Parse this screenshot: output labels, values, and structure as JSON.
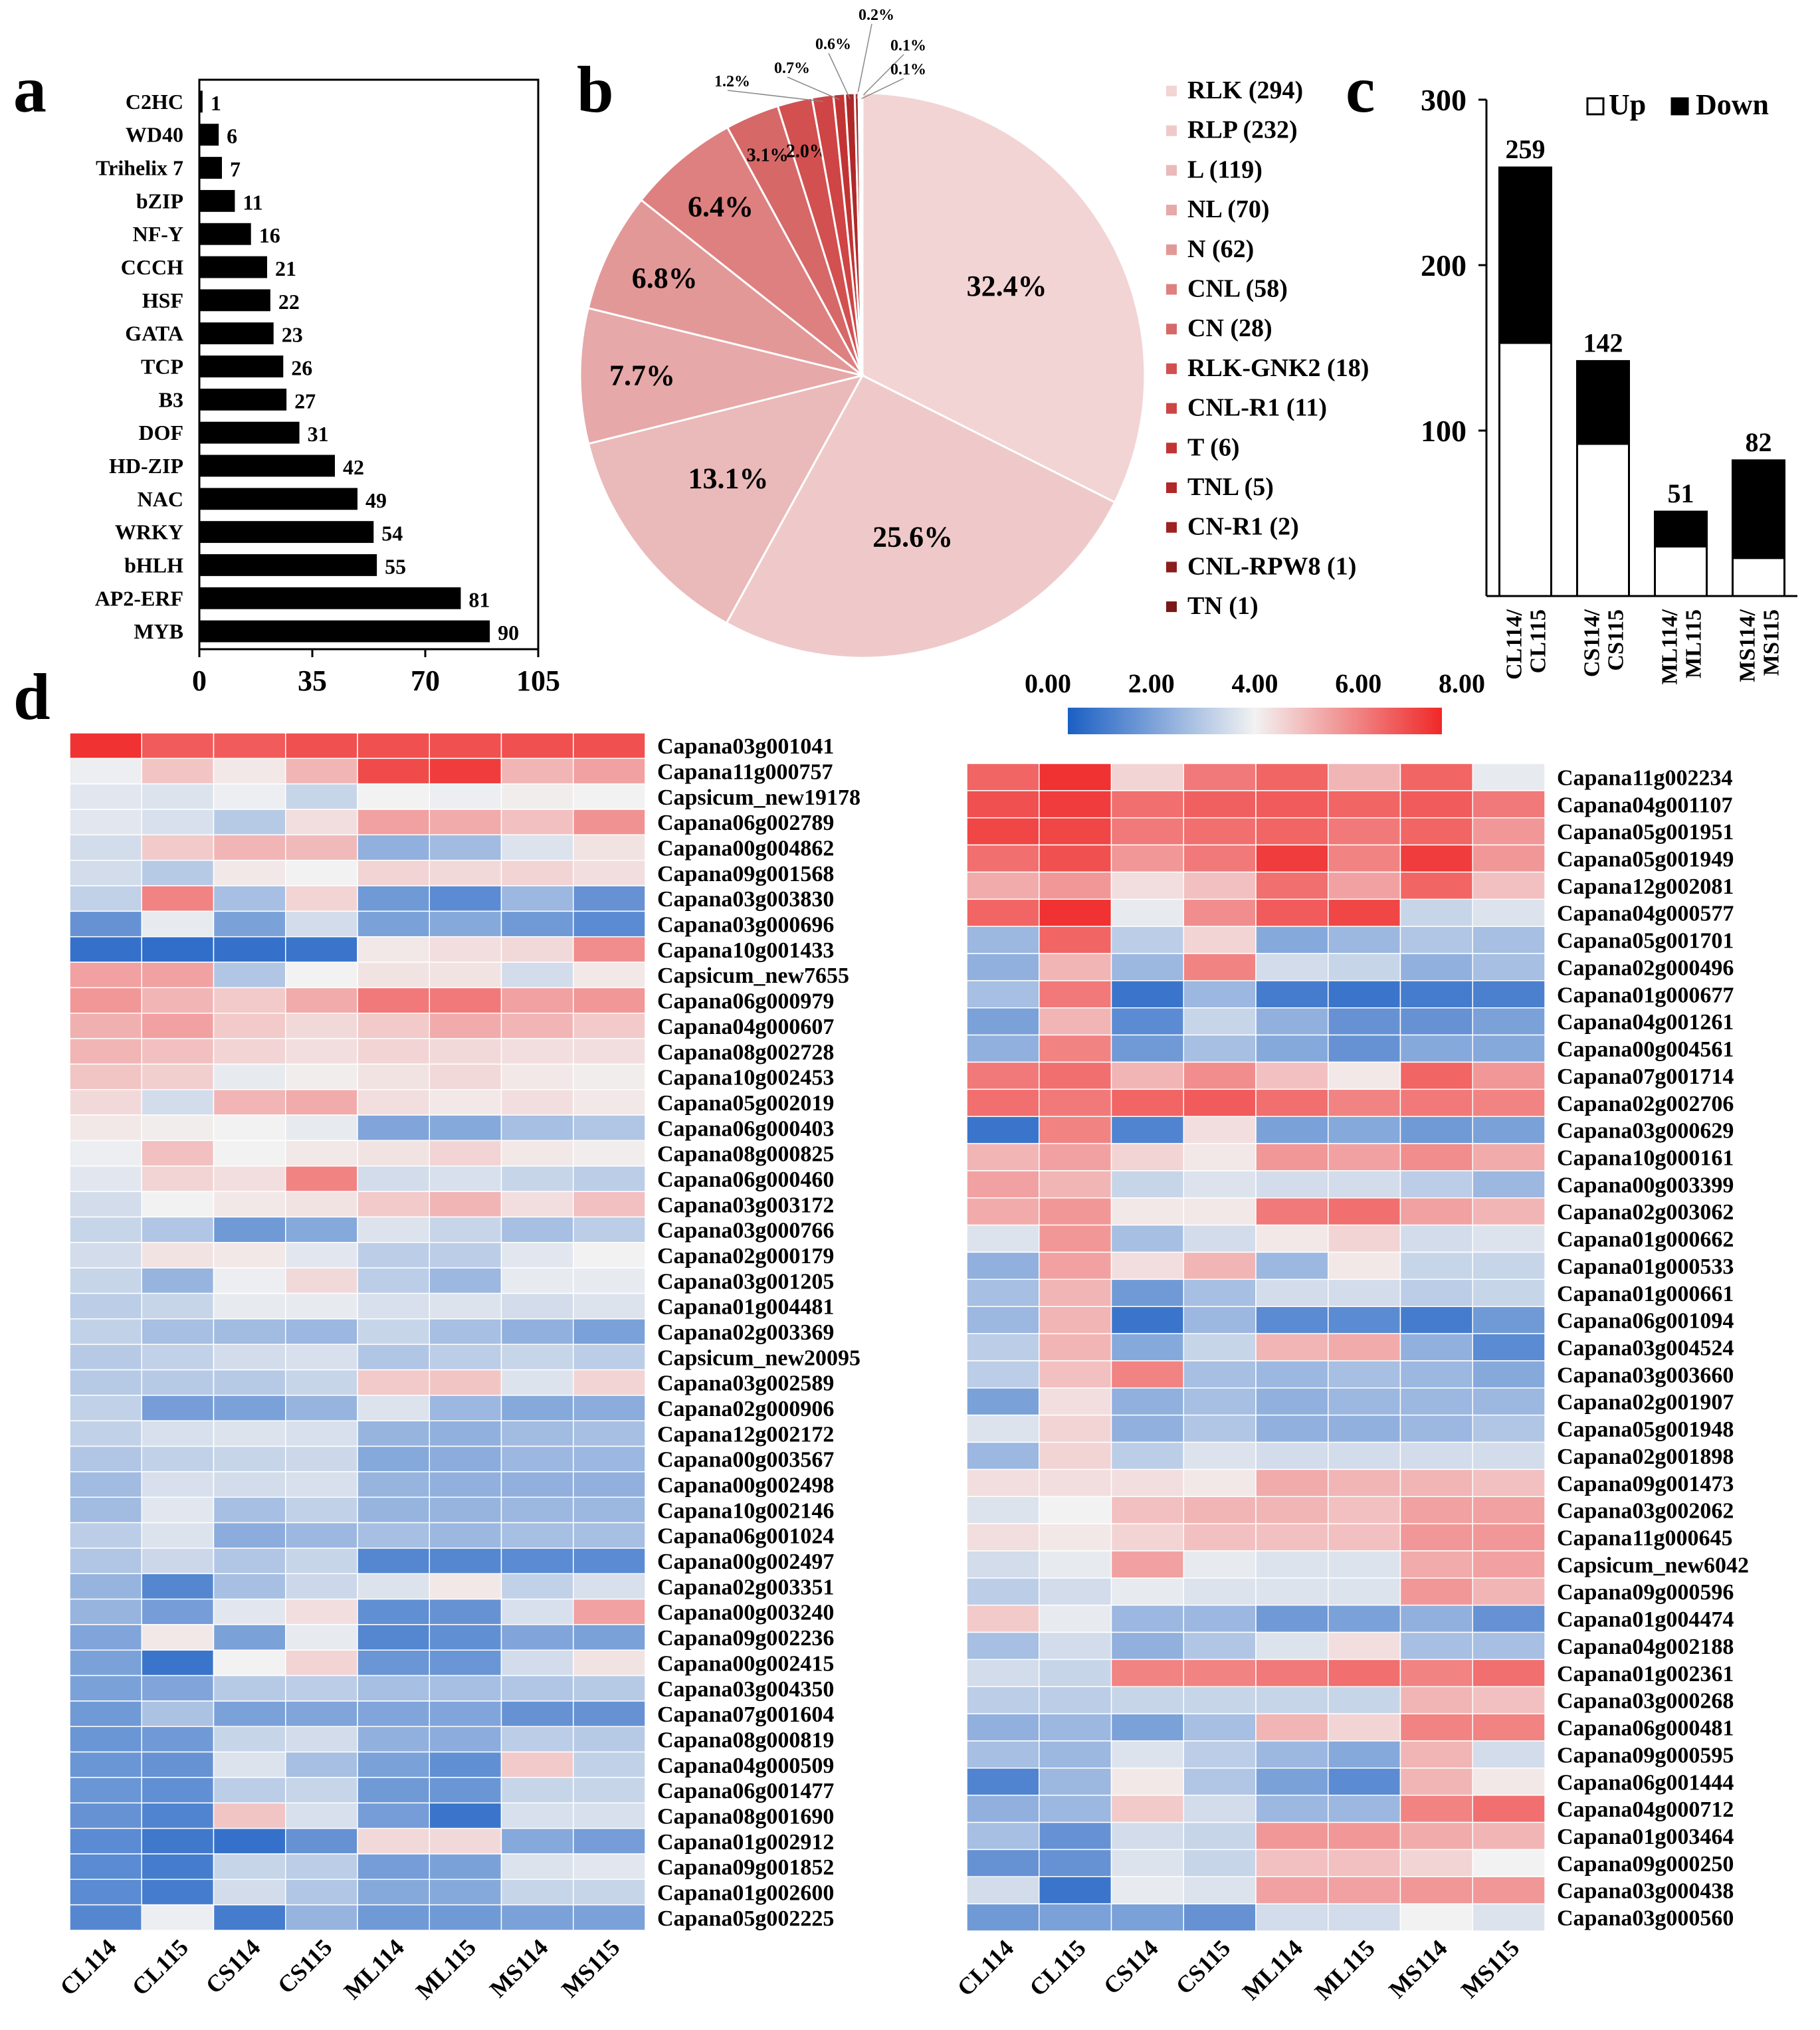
{
  "colors": {
    "bar": "#000000",
    "heat_low": "#1a5fc4",
    "heat_mid": "#f2f2f2",
    "heat_high": "#f02828",
    "pie": [
      "#f2d4d4",
      "#efc9c9",
      "#eab9b9",
      "#e6a8a8",
      "#e39898",
      "#de8080",
      "#d66868",
      "#d25050",
      "#cf4444",
      "#c23434",
      "#b02828",
      "#9e2222",
      "#8c1d1d",
      "#7a1818"
    ]
  },
  "panel_labels": {
    "a": "a",
    "b": "b",
    "c": "c",
    "d": "d"
  },
  "chart_data": [
    {
      "id": "a",
      "type": "bar",
      "orientation": "horizontal",
      "categories": [
        "C2HC",
        "WD40",
        "Trihelix 7",
        "bZIP",
        "NF-Y",
        "CCCH",
        "HSF",
        "GATA",
        "TCP",
        "B3",
        "DOF",
        "HD-ZIP",
        "NAC",
        "WRKY",
        "bHLH",
        "AP2-ERF",
        "MYB"
      ],
      "values": [
        1,
        6,
        7,
        11,
        16,
        21,
        22,
        23,
        26,
        27,
        31,
        42,
        49,
        54,
        55,
        81,
        90
      ],
      "xlim": [
        0,
        105
      ],
      "xticks": [
        "0",
        "35",
        "70",
        "105"
      ],
      "xtick_values": [
        0,
        35,
        70,
        105
      ]
    },
    {
      "id": "b",
      "type": "pie",
      "labels": [
        "RLK",
        "RLP",
        "L",
        "NL",
        "N",
        "CNL",
        "CN",
        "RLK-GNK2",
        "CNL-R1",
        "T",
        "TNL",
        "CN-R1",
        "CNL-RPW8",
        "TN"
      ],
      "counts": [
        294,
        232,
        119,
        70,
        62,
        58,
        28,
        18,
        11,
        6,
        5,
        2,
        1,
        1
      ],
      "legend": [
        "RLK (294)",
        "RLP (232)",
        "L (119)",
        "NL (70)",
        "N (62)",
        "CNL (58)",
        "CN (28)",
        "RLK-GNK2 (18)",
        "CNL-R1 (11)",
        "T (6)",
        "TNL (5)",
        "CN-R1 (2)",
        "CNL-RPW8 (1)",
        "TN (1)"
      ],
      "percent_labels": [
        "32.4%",
        "25.6%",
        "13.1%",
        "7.7%",
        "6.8%",
        "6.4%",
        "3.1%",
        "2.0%",
        "1.2%",
        "0.7%",
        "0.6%",
        "0.2%",
        "0.1%",
        "0.1%"
      ],
      "legend_position": "right"
    },
    {
      "id": "c",
      "type": "bar",
      "stacked": true,
      "categories": [
        "CL114/\nCL115",
        "CS114/\nCS115",
        "ML114/\nML115",
        "MS114/\nMS115"
      ],
      "series": [
        {
          "name": "Up",
          "values": [
            153,
            92,
            30,
            23
          ]
        },
        {
          "name": "Down",
          "values": [
            106,
            50,
            21,
            59
          ]
        }
      ],
      "totals": [
        "259",
        "142",
        "51",
        "82"
      ],
      "total_values": [
        259,
        142,
        51,
        82
      ],
      "ylim": [
        0,
        300
      ],
      "yticks": [
        "100",
        "200",
        "300"
      ],
      "ytick_values": [
        100,
        200,
        300
      ],
      "legend": [
        "Up",
        "Down"
      ],
      "legend_position": "top-right"
    },
    {
      "id": "d",
      "type": "heatmap",
      "colorbar": {
        "ticks": [
          "0.00",
          "2.00",
          "4.00",
          "6.00",
          "8.00"
        ],
        "range": [
          0,
          8
        ]
      },
      "columns": [
        "CL114",
        "CL115",
        "CS114",
        "CS115",
        "ML114",
        "ML115",
        "MS114",
        "MS115"
      ],
      "left_rows": [
        "Capana03g001041",
        "Capana11g000757",
        "Capsicum_new19178",
        "Capana06g002789",
        "Capana00g004862",
        "Capana09g001568",
        "Capana03g003830",
        "Capana03g000696",
        "Capana10g001433",
        "Capsicum_new7655",
        "Capana06g000979",
        "Capana04g000607",
        "Capana08g002728",
        "Capana10g002453",
        "Capana05g002019",
        "Capana06g000403",
        "Capana08g000825",
        "Capana06g000460",
        "Capana03g003172",
        "Capana03g000766",
        "Capana02g000179",
        "Capana03g001205",
        "Capana01g004481",
        "Capana02g003369",
        "Capsicum_new20095",
        "Capana03g002589",
        "Capana02g000906",
        "Capana12g002172",
        "Capana00g003567",
        "Capana00g002498",
        "Capana10g002146",
        "Capana06g001024",
        "Capana00g002497",
        "Capana02g003351",
        "Capana00g003240",
        "Capana09g002236",
        "Capana00g002415",
        "Capana03g004350",
        "Capana07g001604",
        "Capana08g000819",
        "Capana04g000509",
        "Capana06g001477",
        "Capana08g001690",
        "Capana01g002912",
        "Capana09g001852",
        "Capana01g002600",
        "Capana05g002225"
      ],
      "left_values": [
        [
          7.8,
          7.0,
          7.0,
          7.2,
          7.2,
          7.2,
          7.2,
          7.2
        ],
        [
          3.9,
          4.9,
          4.2,
          5.2,
          7.3,
          7.6,
          5.2,
          5.6
        ],
        [
          3.7,
          3.6,
          3.9,
          3.2,
          4.0,
          3.9,
          4.1,
          4.0
        ],
        [
          3.7,
          3.5,
          2.9,
          4.4,
          5.6,
          5.4,
          5.0,
          5.9
        ],
        [
          3.4,
          4.8,
          5.2,
          5.1,
          2.2,
          2.5,
          3.6,
          4.3
        ],
        [
          3.4,
          2.9,
          4.2,
          4.0,
          4.6,
          4.5,
          4.6,
          4.4
        ],
        [
          3.1,
          6.2,
          2.6,
          4.6,
          1.6,
          1.2,
          2.4,
          1.4
        ],
        [
          1.4,
          3.8,
          1.8,
          3.4,
          1.8,
          2.0,
          1.6,
          1.2
        ],
        [
          0.5,
          0.4,
          0.5,
          0.6,
          4.2,
          4.4,
          4.5,
          6.0
        ],
        [
          5.6,
          5.6,
          2.8,
          4.0,
          4.3,
          4.3,
          3.4,
          4.2
        ],
        [
          5.8,
          5.2,
          4.8,
          5.4,
          6.4,
          6.4,
          5.6,
          5.8
        ],
        [
          5.3,
          5.6,
          4.8,
          4.5,
          4.8,
          5.4,
          5.2,
          4.8
        ],
        [
          5.2,
          5.0,
          4.6,
          4.4,
          4.6,
          4.5,
          4.4,
          4.4
        ],
        [
          4.9,
          4.7,
          3.8,
          4.1,
          4.3,
          4.5,
          4.2,
          4.1
        ],
        [
          4.5,
          3.4,
          5.2,
          5.4,
          4.4,
          4.2,
          4.4,
          4.2
        ],
        [
          4.2,
          4.1,
          4.0,
          3.8,
          1.9,
          2.0,
          2.6,
          2.8
        ],
        [
          3.9,
          5.0,
          4.0,
          4.2,
          4.3,
          4.6,
          4.2,
          4.1
        ],
        [
          3.7,
          4.6,
          4.4,
          6.2,
          3.4,
          3.5,
          3.2,
          3.0
        ],
        [
          3.4,
          4.0,
          4.2,
          4.3,
          4.8,
          5.2,
          4.4,
          5.0
        ],
        [
          3.2,
          2.8,
          1.6,
          2.0,
          3.6,
          3.2,
          2.6,
          3.0
        ],
        [
          3.4,
          4.3,
          4.2,
          3.7,
          3.0,
          3.0,
          3.7,
          4.0
        ],
        [
          3.2,
          2.3,
          3.9,
          4.5,
          3.0,
          2.4,
          3.8,
          3.8
        ],
        [
          3.0,
          3.2,
          3.8,
          3.8,
          3.5,
          3.6,
          3.4,
          3.6
        ],
        [
          3.1,
          2.6,
          2.5,
          2.4,
          3.2,
          2.6,
          2.2,
          1.8
        ],
        [
          2.9,
          3.1,
          3.4,
          3.5,
          2.8,
          3.0,
          3.2,
          3.0
        ],
        [
          2.9,
          2.9,
          2.9,
          3.2,
          4.8,
          4.9,
          3.6,
          4.6
        ],
        [
          3.1,
          1.7,
          1.8,
          2.3,
          3.6,
          2.4,
          2.0,
          2.1
        ],
        [
          3.1,
          3.5,
          3.6,
          3.5,
          2.3,
          2.2,
          2.5,
          2.6
        ],
        [
          2.8,
          3.1,
          3.2,
          3.3,
          2.0,
          2.1,
          2.4,
          2.4
        ],
        [
          2.5,
          3.5,
          3.4,
          3.5,
          2.3,
          2.2,
          2.2,
          2.2
        ],
        [
          2.5,
          3.7,
          2.6,
          3.1,
          2.3,
          2.3,
          2.4,
          2.4
        ],
        [
          3.0,
          3.6,
          2.1,
          2.4,
          2.6,
          2.4,
          2.6,
          2.6
        ],
        [
          2.8,
          3.3,
          2.8,
          3.2,
          1.1,
          1.1,
          1.2,
          1.2
        ],
        [
          2.3,
          1.1,
          2.6,
          3.3,
          3.6,
          4.2,
          3.1,
          3.5
        ],
        [
          2.3,
          1.7,
          3.7,
          4.4,
          1.3,
          1.4,
          3.5,
          5.6
        ],
        [
          1.9,
          4.2,
          1.8,
          3.8,
          1.1,
          1.3,
          1.9,
          1.8
        ],
        [
          1.8,
          0.6,
          4.0,
          4.6,
          1.5,
          1.5,
          3.4,
          4.3
        ],
        [
          1.8,
          1.9,
          2.9,
          3.0,
          2.6,
          2.6,
          2.8,
          2.9
        ],
        [
          1.6,
          2.7,
          1.8,
          1.9,
          1.9,
          1.9,
          1.4,
          1.4
        ],
        [
          1.5,
          1.6,
          3.2,
          3.4,
          2.2,
          2.1,
          3.0,
          2.9
        ],
        [
          1.5,
          1.4,
          3.6,
          2.6,
          1.8,
          1.3,
          4.8,
          3.1
        ],
        [
          1.5,
          1.3,
          3.0,
          3.2,
          1.6,
          1.5,
          3.2,
          3.2
        ],
        [
          1.4,
          1.0,
          4.9,
          3.5,
          1.7,
          0.6,
          3.5,
          3.5
        ],
        [
          1.2,
          0.7,
          0.5,
          1.4,
          4.5,
          4.5,
          2.0,
          1.7
        ],
        [
          1.2,
          0.8,
          3.2,
          3.0,
          1.7,
          1.8,
          3.6,
          3.7
        ],
        [
          1.2,
          0.8,
          3.4,
          2.8,
          2.0,
          2.0,
          3.2,
          3.2
        ],
        [
          1.1,
          3.9,
          0.8,
          2.3,
          1.6,
          1.6,
          1.8,
          1.8
        ]
      ],
      "right_rows": [
        "Capana11g002234",
        "Capana04g001107",
        "Capana05g001951",
        "Capana05g001949",
        "Capana12g002081",
        "Capana04g000577",
        "Capana05g001701",
        "Capana02g000496",
        "Capana01g000677",
        "Capana04g001261",
        "Capana00g004561",
        "Capana07g001714",
        "Capana02g002706",
        "Capana03g000629",
        "Capana10g000161",
        "Capana00g003399",
        "Capana02g003062",
        "Capana01g000662",
        "Capana01g000533",
        "Capana01g000661",
        "Capana06g001094",
        "Capana03g004524",
        "Capana03g003660",
        "Capana02g001907",
        "Capana05g001948",
        "Capana02g001898",
        "Capana09g001473",
        "Capana03g002062",
        "Capana11g000645",
        "Capsicum_new6042",
        "Capana09g000596",
        "Capana01g004474",
        "Capana04g002188",
        "Capana01g002361",
        "Capana03g000268",
        "Capana06g000481",
        "Capana09g000595",
        "Capana06g001444",
        "Capana04g000712",
        "Capana01g003464",
        "Capana09g000250",
        "Capana03g000438",
        "Capana03g000560"
      ],
      "right_values": [
        [
          6.8,
          7.8,
          4.6,
          6.4,
          6.8,
          5.2,
          6.8,
          3.8
        ],
        [
          7.2,
          7.6,
          6.6,
          6.9,
          7.0,
          6.8,
          7.0,
          6.4
        ],
        [
          7.4,
          7.4,
          6.4,
          6.6,
          6.8,
          6.4,
          6.8,
          5.8
        ],
        [
          6.6,
          7.2,
          5.8,
          6.4,
          7.6,
          6.2,
          7.6,
          5.8
        ],
        [
          5.4,
          5.8,
          4.4,
          5.0,
          6.6,
          5.6,
          6.8,
          5.0
        ],
        [
          6.8,
          7.8,
          3.8,
          6.0,
          7.0,
          7.4,
          3.2,
          3.6
        ],
        [
          2.4,
          6.8,
          3.0,
          4.6,
          2.0,
          2.4,
          2.8,
          2.6
        ],
        [
          2.2,
          5.2,
          2.4,
          6.2,
          3.4,
          3.2,
          2.2,
          2.6
        ],
        [
          2.6,
          6.4,
          0.6,
          2.4,
          0.8,
          0.6,
          0.8,
          0.9
        ],
        [
          1.8,
          5.2,
          1.2,
          3.2,
          2.2,
          1.4,
          1.4,
          1.8
        ],
        [
          2.2,
          6.2,
          1.6,
          2.6,
          2.0,
          1.4,
          2.0,
          2.0
        ],
        [
          6.4,
          6.6,
          5.2,
          6.0,
          5.0,
          4.2,
          6.8,
          5.8
        ],
        [
          6.6,
          6.4,
          6.8,
          7.0,
          6.6,
          6.2,
          6.4,
          6.2
        ],
        [
          0.6,
          6.2,
          1.0,
          4.4,
          1.8,
          2.0,
          1.6,
          1.8
        ],
        [
          5.2,
          5.6,
          4.6,
          4.2,
          5.8,
          5.6,
          6.0,
          5.4
        ],
        [
          5.6,
          5.2,
          3.2,
          3.6,
          3.4,
          3.4,
          3.0,
          2.4
        ],
        [
          5.4,
          5.8,
          4.2,
          4.2,
          6.4,
          6.6,
          5.6,
          5.2
        ],
        [
          3.6,
          5.8,
          2.6,
          3.4,
          4.2,
          4.6,
          3.4,
          3.6
        ],
        [
          2.2,
          5.6,
          4.4,
          5.2,
          2.4,
          4.2,
          3.2,
          3.2
        ],
        [
          2.6,
          5.2,
          1.6,
          2.6,
          3.4,
          3.4,
          3.0,
          3.2
        ],
        [
          2.4,
          5.2,
          0.6,
          2.4,
          1.2,
          1.2,
          0.8,
          1.6
        ],
        [
          3.0,
          5.2,
          2.0,
          3.2,
          5.2,
          5.4,
          2.2,
          1.2
        ],
        [
          3.0,
          5.0,
          6.2,
          2.6,
          2.4,
          2.6,
          2.4,
          2.0
        ],
        [
          1.8,
          4.4,
          2.2,
          2.6,
          2.2,
          2.4,
          2.4,
          2.4
        ],
        [
          3.6,
          4.6,
          2.2,
          2.8,
          2.2,
          2.2,
          2.4,
          2.8
        ],
        [
          2.4,
          4.6,
          3.0,
          3.6,
          3.4,
          3.4,
          3.4,
          3.4
        ],
        [
          4.4,
          4.4,
          4.4,
          4.2,
          5.4,
          5.2,
          5.2,
          5.0
        ],
        [
          3.6,
          4.0,
          5.0,
          5.2,
          5.2,
          5.0,
          5.6,
          5.6
        ],
        [
          4.4,
          4.2,
          4.6,
          5.0,
          5.0,
          5.0,
          5.8,
          5.8
        ],
        [
          3.4,
          3.8,
          5.6,
          3.8,
          3.6,
          3.6,
          5.4,
          5.6
        ],
        [
          3.0,
          3.4,
          3.8,
          3.6,
          3.6,
          3.6,
          5.8,
          5.2
        ],
        [
          4.8,
          3.8,
          2.4,
          2.4,
          1.6,
          1.8,
          2.2,
          1.4
        ],
        [
          2.6,
          3.4,
          2.2,
          2.8,
          3.6,
          4.4,
          2.6,
          2.6
        ],
        [
          3.4,
          3.2,
          6.2,
          6.2,
          6.4,
          6.6,
          6.2,
          6.6
        ],
        [
          3.0,
          3.0,
          3.2,
          3.2,
          3.2,
          3.2,
          5.2,
          5.0
        ],
        [
          2.2,
          2.4,
          1.8,
          2.6,
          5.2,
          4.6,
          6.2,
          6.2
        ],
        [
          2.6,
          2.4,
          3.6,
          3.0,
          2.4,
          2.0,
          5.2,
          3.4
        ],
        [
          1.0,
          2.4,
          4.2,
          2.8,
          1.8,
          1.2,
          5.2,
          4.2
        ],
        [
          2.2,
          2.4,
          4.8,
          3.4,
          2.4,
          2.4,
          6.2,
          6.6
        ],
        [
          2.6,
          1.4,
          3.4,
          3.2,
          5.8,
          5.8,
          5.4,
          5.2
        ],
        [
          1.4,
          1.4,
          3.6,
          3.2,
          5.0,
          5.0,
          4.6,
          4.0
        ],
        [
          3.4,
          0.6,
          3.8,
          3.6,
          5.6,
          5.6,
          5.8,
          5.8
        ],
        [
          1.6,
          1.8,
          1.8,
          1.4,
          3.4,
          3.4,
          4.0,
          3.6
        ]
      ]
    }
  ]
}
